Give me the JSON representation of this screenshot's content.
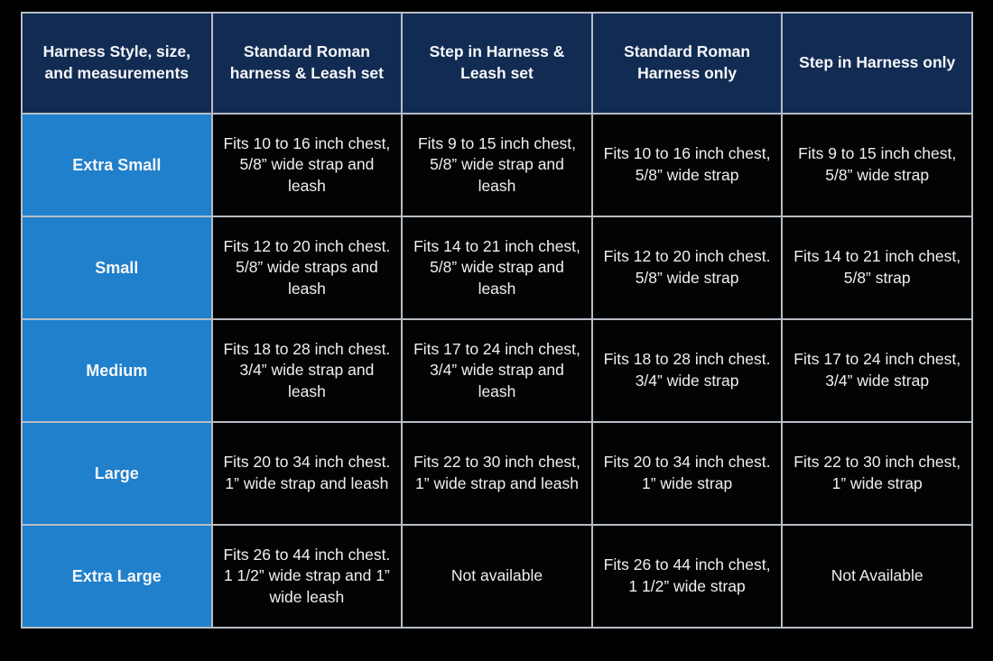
{
  "colors": {
    "page_background": "#000000",
    "header_background": "#122b53",
    "size_column_background": "#2080cc",
    "data_cell_background": "#030303",
    "grid_line": "#b7bec5",
    "text": "#f5f6f8"
  },
  "chart_data": {
    "type": "table",
    "title": "Harness Style, size, and measurements",
    "columns": [
      "Harness Style, size, and measurements",
      "Standard Roman harness & Leash set",
      "Step in Harness & Leash set",
      "Standard Roman Harness only",
      "Step in Harness only"
    ],
    "rows": [
      {
        "size": "Extra Small",
        "cells": [
          "Fits 10 to 16 inch chest, 5/8” wide strap and leash",
          "Fits 9 to 15 inch chest, 5/8” wide strap and leash",
          "Fits 10 to 16 inch chest, 5/8” wide strap",
          "Fits 9 to 15 inch chest, 5/8” wide strap"
        ]
      },
      {
        "size": "Small",
        "cells": [
          "Fits 12 to 20 inch chest. 5/8” wide straps and leash",
          "Fits 14 to 21 inch chest, 5/8” wide strap and leash",
          "Fits 12 to 20 inch chest. 5/8” wide strap",
          "Fits 14 to 21 inch chest, 5/8” strap"
        ]
      },
      {
        "size": "Medium",
        "cells": [
          "Fits 18 to 28 inch chest. 3/4” wide strap and leash",
          "Fits 17 to 24 inch chest, 3/4” wide strap and leash",
          "Fits 18 to 28 inch chest. 3/4” wide strap",
          "Fits 17 to 24 inch chest, 3/4” wide strap"
        ]
      },
      {
        "size": "Large",
        "cells": [
          "Fits 20 to 34 inch chest. 1” wide strap and leash",
          "Fits 22 to 30 inch chest, 1” wide strap and leash",
          "Fits 20 to 34 inch chest. 1” wide strap",
          "Fits 22 to 30 inch chest, 1” wide strap"
        ]
      },
      {
        "size": "Extra Large",
        "cells": [
          "Fits 26 to 44 inch chest. 1 1/2” wide strap and 1” wide leash",
          "Not available",
          "Fits 26 to 44 inch chest, 1 1/2” wide strap",
          "Not Available"
        ]
      }
    ]
  }
}
